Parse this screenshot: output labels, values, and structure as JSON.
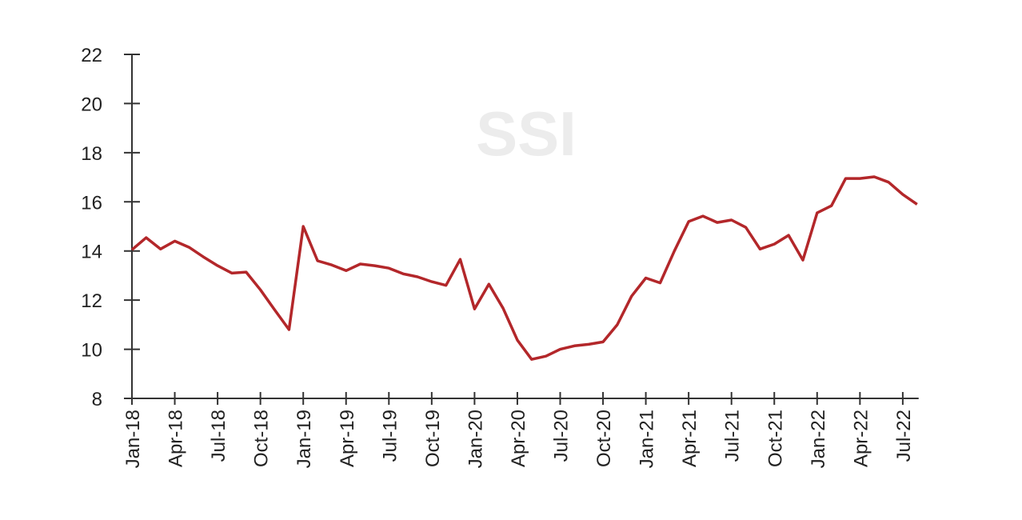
{
  "watermark": "SSI",
  "chart_data": {
    "type": "line",
    "title": "",
    "xlabel": "",
    "ylabel": "",
    "ylim": [
      8,
      22
    ],
    "yticks": [
      8,
      10,
      12,
      14,
      16,
      18,
      20,
      22
    ],
    "grid": false,
    "line_color": "#b3272a",
    "x_tick_labels": [
      "Jan-18",
      "Apr-18",
      "Jul-18",
      "Oct-18",
      "Jan-19",
      "Apr-19",
      "Jul-19",
      "Oct-19",
      "Jan-20",
      "Apr-20",
      "Jul-20",
      "Oct-20",
      "Jan-21",
      "Apr-21",
      "Jul-21",
      "Oct-21",
      "Jan-22",
      "Apr-22",
      "Jul-22"
    ],
    "start_month": "Jan-18",
    "series": [
      {
        "name": "series",
        "values": [
          14.05,
          14.54,
          14.08,
          14.4,
          14.15,
          13.76,
          13.4,
          13.1,
          13.14,
          12.42,
          11.6,
          10.8,
          15.0,
          13.6,
          13.43,
          13.2,
          13.47,
          13.4,
          13.3,
          13.07,
          12.95,
          12.75,
          12.6,
          13.66,
          11.64,
          12.65,
          11.67,
          10.37,
          9.59,
          9.72,
          10.0,
          10.14,
          10.2,
          10.3,
          11.0,
          12.16,
          12.9,
          12.7,
          14.0,
          15.2,
          15.42,
          15.16,
          15.26,
          14.96,
          14.08,
          14.28,
          14.64,
          13.63,
          15.55,
          15.84,
          16.95,
          16.95,
          17.02,
          16.8,
          16.3,
          15.9
        ]
      }
    ]
  }
}
